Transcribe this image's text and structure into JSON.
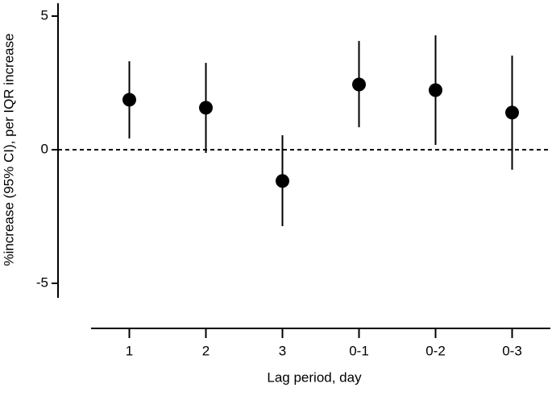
{
  "chart_data": {
    "type": "errorbar",
    "x_label": "Lag period, day",
    "y_label": "%increase (95% CI), per IQR increase",
    "categories": [
      "1",
      "2",
      "3",
      "0-1",
      "0-2",
      "0-3"
    ],
    "values": [
      1.87,
      1.57,
      -1.17,
      2.44,
      2.23,
      1.39
    ],
    "lower": [
      0.42,
      -0.12,
      -2.86,
      0.84,
      0.18,
      -0.75
    ],
    "upper": [
      3.31,
      3.25,
      0.54,
      4.07,
      4.28,
      3.52
    ],
    "color": "#000000",
    "reference_line": 0,
    "ylim": [
      -5.5,
      5.5
    ],
    "yticks": [
      -5,
      0,
      5
    ]
  }
}
